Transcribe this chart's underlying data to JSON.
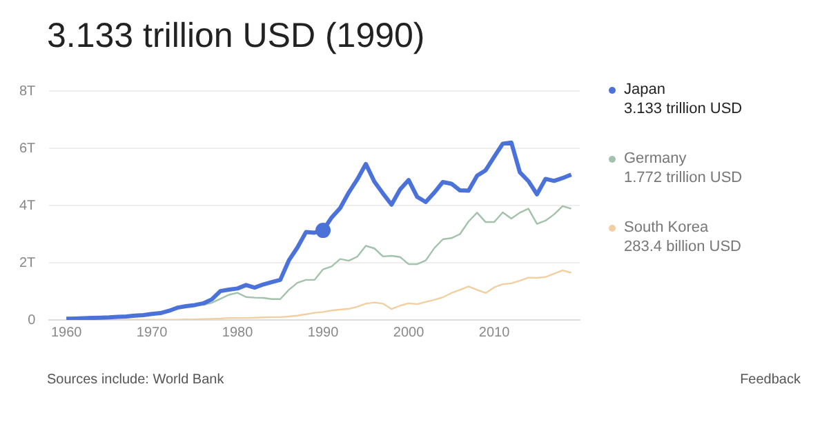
{
  "chart_data": {
    "type": "line",
    "title": "3.133 trillion USD (1990)",
    "x": [
      1960,
      1961,
      1962,
      1963,
      1964,
      1965,
      1966,
      1967,
      1968,
      1969,
      1970,
      1971,
      1972,
      1973,
      1974,
      1975,
      1976,
      1977,
      1978,
      1979,
      1980,
      1981,
      1982,
      1983,
      1984,
      1985,
      1986,
      1987,
      1988,
      1989,
      1990,
      1991,
      1992,
      1993,
      1994,
      1995,
      1996,
      1997,
      1998,
      1999,
      2000,
      2001,
      2002,
      2003,
      2004,
      2005,
      2006,
      2007,
      2008,
      2009,
      2010,
      2011,
      2012,
      2013,
      2014,
      2015,
      2016,
      2017,
      2018,
      2019
    ],
    "series": [
      {
        "name": "Japan",
        "color": "#4a72d8",
        "values": [
          0.04,
          0.05,
          0.06,
          0.07,
          0.08,
          0.09,
          0.11,
          0.12,
          0.15,
          0.17,
          0.21,
          0.24,
          0.32,
          0.43,
          0.48,
          0.52,
          0.58,
          0.72,
          1.01,
          1.06,
          1.1,
          1.22,
          1.13,
          1.24,
          1.32,
          1.4,
          2.08,
          2.53,
          3.07,
          3.05,
          3.13,
          3.58,
          3.91,
          4.45,
          4.91,
          5.45,
          4.83,
          4.42,
          4.03,
          4.56,
          4.89,
          4.3,
          4.12,
          4.45,
          4.82,
          4.76,
          4.53,
          4.52,
          5.04,
          5.23,
          5.7,
          6.16,
          6.2,
          5.16,
          4.85,
          4.39,
          4.93,
          4.86,
          4.96,
          5.08
        ]
      },
      {
        "name": "Germany",
        "color": "#a3c2ab",
        "values": [
          null,
          null,
          null,
          null,
          null,
          null,
          null,
          null,
          null,
          null,
          null,
          null,
          null,
          null,
          null,
          null,
          0.52,
          0.6,
          0.74,
          0.88,
          0.95,
          0.8,
          0.78,
          0.77,
          0.73,
          0.73,
          1.05,
          1.3,
          1.4,
          1.4,
          1.77,
          1.87,
          2.13,
          2.07,
          2.21,
          2.59,
          2.5,
          2.22,
          2.24,
          2.2,
          1.95,
          1.95,
          2.08,
          2.51,
          2.82,
          2.86,
          3.0,
          3.44,
          3.75,
          3.42,
          3.42,
          3.76,
          3.54,
          3.75,
          3.89,
          3.36,
          3.47,
          3.69,
          3.98,
          3.89
        ]
      },
      {
        "name": "South Korea",
        "color": "#f2cfa0",
        "values": [
          null,
          null,
          null,
          null,
          0.0,
          0.0,
          0.0,
          0.01,
          0.01,
          0.01,
          0.01,
          0.01,
          0.01,
          0.01,
          0.02,
          0.02,
          0.03,
          0.04,
          0.05,
          0.07,
          0.07,
          0.07,
          0.08,
          0.09,
          0.1,
          0.1,
          0.12,
          0.15,
          0.2,
          0.25,
          0.28,
          0.33,
          0.36,
          0.39,
          0.46,
          0.57,
          0.61,
          0.57,
          0.38,
          0.5,
          0.58,
          0.55,
          0.63,
          0.7,
          0.79,
          0.94,
          1.05,
          1.17,
          1.05,
          0.94,
          1.14,
          1.25,
          1.28,
          1.37,
          1.48,
          1.47,
          1.5,
          1.62,
          1.73,
          1.65
        ]
      },
      {
        "type": "scatter",
        "marker": "circle",
        "color": "#4a72d8",
        "x": [
          1990
        ],
        "values": [
          3.13
        ]
      }
    ],
    "annotations": [
      "3.133 trillion USD",
      "1.772 trillion USD",
      "283.4 billion USD",
      "Sources include: World Bank",
      "Feedback"
    ],
    "xlim": [
      1958,
      2020
    ],
    "xticks": [
      1960,
      1970,
      1980,
      1990,
      2000,
      2010
    ],
    "ylim": [
      0,
      8
    ],
    "yticks": [
      0,
      {
        "value": 2,
        "label": "2T"
      },
      {
        "value": 4,
        "label": "4T"
      },
      {
        "value": 6,
        "label": "6T"
      },
      {
        "value": 8,
        "label": "8T"
      }
    ],
    "grid": "y",
    "legend": "right",
    "marker": "none"
  }
}
